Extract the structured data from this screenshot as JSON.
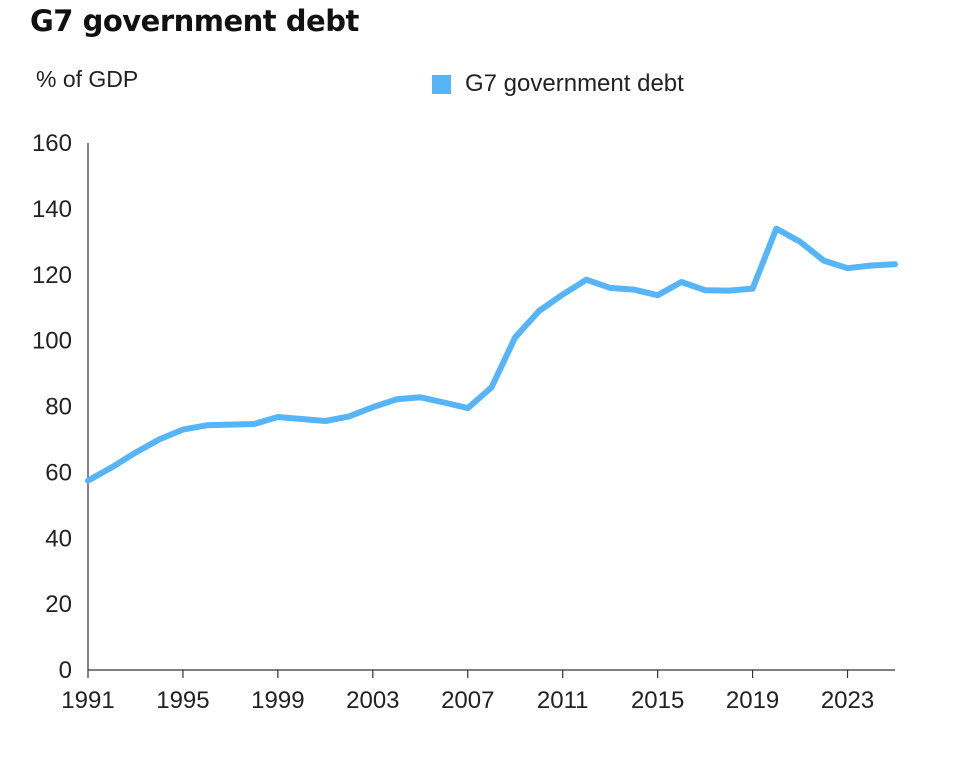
{
  "chart_data": {
    "type": "line",
    "title": "G7 government debt",
    "ylabel": "% of GDP",
    "xlabel": "",
    "ylim": [
      0,
      160
    ],
    "xlim": [
      1991,
      2025
    ],
    "y_ticks": [
      "0",
      "20",
      "40",
      "60",
      "80",
      "100",
      "120",
      "140",
      "160"
    ],
    "x_ticks": [
      "1991",
      "1995",
      "1999",
      "2003",
      "2007",
      "2011",
      "2015",
      "2019",
      "2023"
    ],
    "grid": false,
    "legend_position": "top",
    "series": [
      {
        "name": "G7 government debt",
        "color": "#56b4f9",
        "x": [
          1991,
          1992,
          1993,
          1994,
          1995,
          1996,
          1997,
          1998,
          1999,
          2000,
          2001,
          2002,
          2003,
          2004,
          2005,
          2006,
          2007,
          2008,
          2009,
          2010,
          2011,
          2012,
          2013,
          2014,
          2015,
          2016,
          2017,
          2018,
          2019,
          2020,
          2021,
          2022,
          2023,
          2024,
          2025
        ],
        "values": [
          57.5,
          61.5,
          66,
          70,
          73,
          74.3,
          74.5,
          74.7,
          76.8,
          76.2,
          75.6,
          77,
          79.8,
          82.2,
          82.8,
          81.2,
          79.5,
          85.8,
          101,
          109,
          114,
          118.5,
          116,
          115.5,
          113.8,
          117.8,
          115.3,
          115.2,
          115.8,
          134,
          130,
          124.3,
          122,
          122.8,
          123.2
        ]
      }
    ]
  }
}
